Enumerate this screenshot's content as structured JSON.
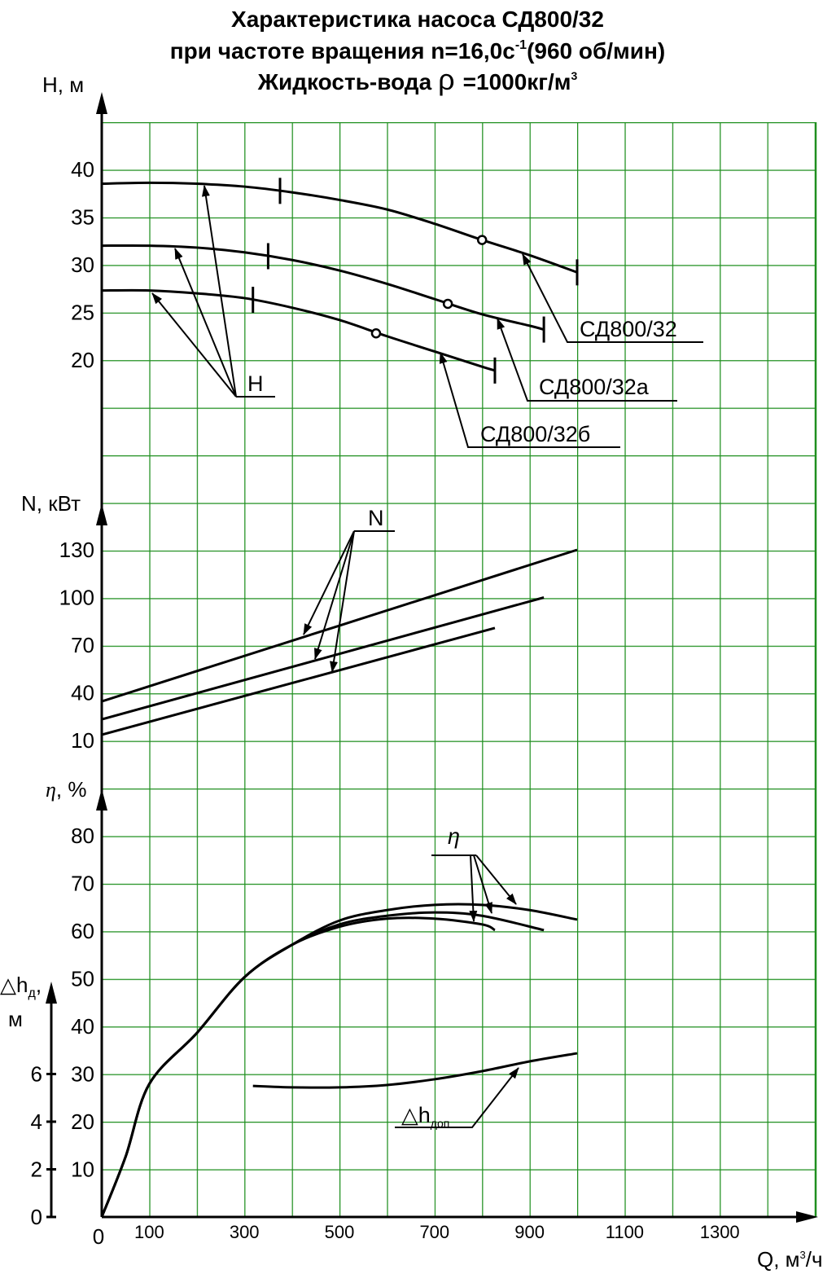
{
  "header": {
    "line1": "Характеристика насоса СД800/32",
    "line2": "при частоте вращения n=16,0с",
    "line2_sup": "-1",
    "line2_end": "(960 об/мин)",
    "line3": "Жидкость-вода",
    "line3_rho": "ρ",
    "line3_end": "=1000кг/м",
    "line3_sup": "3"
  },
  "chart_data": [
    {
      "type": "line",
      "ylabel": "H, м",
      "xlim": [
        0,
        1500
      ],
      "ylim": [
        10,
        45
      ],
      "yticks": [
        20,
        25,
        30,
        35,
        40
      ],
      "color": "#000000",
      "annotation": "H",
      "series": [
        {
          "name": "СД800/32",
          "x": [
            0,
            100,
            200,
            300,
            400,
            500,
            600,
            700,
            800,
            900,
            1000
          ],
          "values": [
            38.5,
            38.6,
            38.5,
            38.2,
            37.6,
            36.8,
            35.8,
            34.3,
            32.6,
            31.0,
            29.2
          ],
          "range": [
            375,
            1000
          ],
          "optimum": [
            800,
            32.6
          ]
        },
        {
          "name": "СД800/32а",
          "x": [
            0,
            100,
            200,
            300,
            400,
            500,
            600,
            700,
            800,
            900,
            930
          ],
          "values": [
            32.0,
            32.0,
            31.8,
            31.3,
            30.5,
            29.4,
            28.0,
            26.4,
            24.8,
            23.6,
            23.2
          ],
          "range": [
            350,
            930
          ],
          "optimum": [
            728,
            25.9
          ]
        },
        {
          "name": "СД800/32б",
          "x": [
            0,
            100,
            200,
            300,
            400,
            500,
            600,
            700,
            800,
            827
          ],
          "values": [
            27.3,
            27.3,
            27.0,
            26.5,
            25.5,
            24.2,
            22.5,
            20.9,
            19.3,
            18.9
          ],
          "range": [
            318,
            827
          ],
          "optimum": [
            577,
            22.8
          ]
        }
      ]
    },
    {
      "type": "line",
      "ylabel": "N, кВт",
      "xlim": [
        0,
        1500
      ],
      "ylim": [
        0,
        150
      ],
      "yticks": [
        10,
        40,
        70,
        100,
        130
      ],
      "color": "#000000",
      "annotation": "N",
      "series": [
        {
          "x": [
            0,
            1000
          ],
          "values": [
            34.6,
            130
          ]
        },
        {
          "x": [
            0,
            930
          ],
          "values": [
            23.3,
            100
          ]
        },
        {
          "x": [
            0,
            827
          ],
          "values": [
            13.6,
            80.8
          ]
        }
      ]
    },
    {
      "type": "line",
      "ylabel_symbol": "η",
      "ylabel_unit": ", %",
      "xlim": [
        0,
        1500
      ],
      "ylim": [
        0,
        90
      ],
      "yticks": [
        10,
        20,
        30,
        40,
        50,
        60,
        70,
        80
      ],
      "color": "#000000",
      "annotation": "η",
      "series": [
        {
          "x": [
            0,
            50,
            100,
            200,
            300,
            400,
            500,
            600,
            700,
            800,
            900,
            1000
          ],
          "values": [
            0,
            12.6,
            27.9,
            38.6,
            50.3,
            57.1,
            62.2,
            64.4,
            65.5,
            65.5,
            64.4,
            62.4
          ]
        },
        {
          "x": [
            0,
            50,
            100,
            200,
            300,
            400,
            500,
            600,
            700,
            800,
            930
          ],
          "values": [
            0,
            12.6,
            27.9,
            38.6,
            50.3,
            57.1,
            61.4,
            63.2,
            63.9,
            63.2,
            60.2
          ]
        },
        {
          "x": [
            0,
            50,
            100,
            200,
            300,
            400,
            500,
            600,
            700,
            800,
            827
          ],
          "values": [
            0,
            12.6,
            27.9,
            38.6,
            50.3,
            57.1,
            60.9,
            62.6,
            62.6,
            61.4,
            60.2
          ]
        }
      ]
    },
    {
      "type": "line",
      "ylabel": "△h",
      "ylabel_sub": "д",
      "ylabel_end": ",",
      "ylabel_unit": "м",
      "xlim": [
        0,
        1500
      ],
      "ylim": [
        0,
        8
      ],
      "yticks": [
        0,
        2,
        4,
        6
      ],
      "xticks": [
        0,
        100,
        300,
        500,
        700,
        900,
        1100,
        1300
      ],
      "xlabel": "Q, м",
      "xlabel_sup": "3",
      "xlabel_end": "/ч",
      "color": "#000000",
      "annotation": "△h",
      "annotation_sub": "доп",
      "series": [
        {
          "x": [
            318,
            400,
            500,
            600,
            700,
            800,
            900,
            1000
          ],
          "values": [
            5.5,
            5.44,
            5.44,
            5.54,
            5.78,
            6.12,
            6.53,
            6.87
          ]
        }
      ]
    }
  ]
}
